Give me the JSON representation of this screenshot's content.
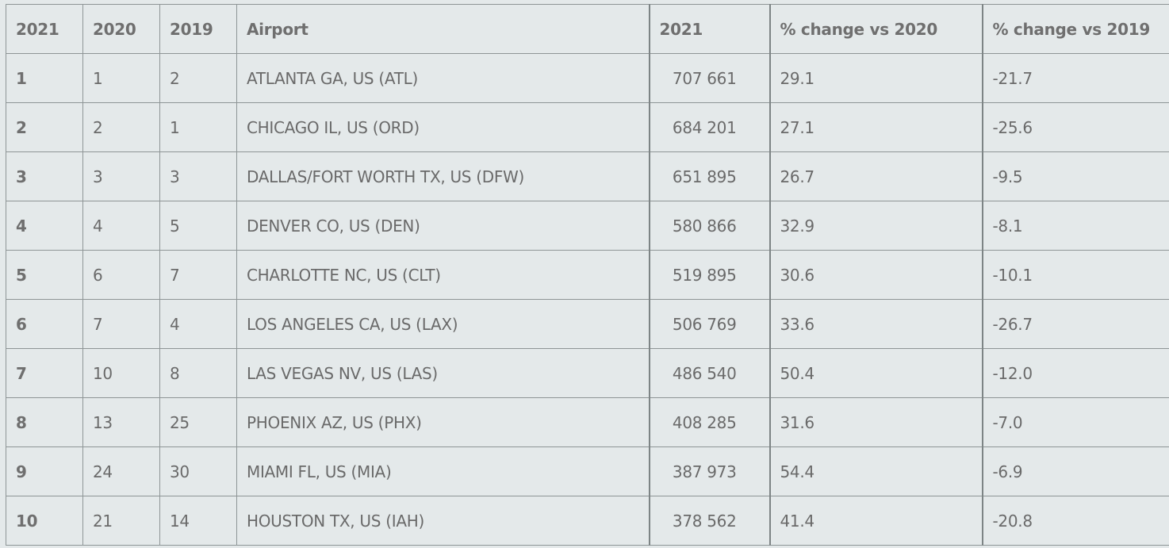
{
  "chart_data": {
    "type": "table",
    "columns": [
      "2021",
      "2020",
      "2019",
      "Airport",
      "2021",
      "% change vs 2020",
      "% change vs 2019"
    ],
    "rows": [
      {
        "rank_2021": "1",
        "rank_2020": "1",
        "rank_2019": "2",
        "airport": "ATLANTA GA, US (ATL)",
        "value_2021": "707 661",
        "change_vs_2020": "29.1",
        "change_vs_2019": "-21.7"
      },
      {
        "rank_2021": "2",
        "rank_2020": "2",
        "rank_2019": "1",
        "airport": "CHICAGO IL, US (ORD)",
        "value_2021": "684 201",
        "change_vs_2020": "27.1",
        "change_vs_2019": "-25.6"
      },
      {
        "rank_2021": "3",
        "rank_2020": "3",
        "rank_2019": "3",
        "airport": "DALLAS/FORT WORTH TX, US (DFW)",
        "value_2021": "651 895",
        "change_vs_2020": "26.7",
        "change_vs_2019": "-9.5"
      },
      {
        "rank_2021": "4",
        "rank_2020": "4",
        "rank_2019": "5",
        "airport": "DENVER CO, US (DEN)",
        "value_2021": "580 866",
        "change_vs_2020": "32.9",
        "change_vs_2019": "-8.1"
      },
      {
        "rank_2021": "5",
        "rank_2020": "6",
        "rank_2019": "7",
        "airport": "CHARLOTTE NC, US (CLT)",
        "value_2021": "519 895",
        "change_vs_2020": "30.6",
        "change_vs_2019": "-10.1"
      },
      {
        "rank_2021": "6",
        "rank_2020": "7",
        "rank_2019": "4",
        "airport": "LOS ANGELES CA, US (LAX)",
        "value_2021": "506 769",
        "change_vs_2020": "33.6",
        "change_vs_2019": "-26.7"
      },
      {
        "rank_2021": "7",
        "rank_2020": "10",
        "rank_2019": "8",
        "airport": "LAS VEGAS NV, US (LAS)",
        "value_2021": "486 540",
        "change_vs_2020": "50.4",
        "change_vs_2019": "-12.0"
      },
      {
        "rank_2021": "8",
        "rank_2020": "13",
        "rank_2019": "25",
        "airport": "PHOENIX AZ, US (PHX)",
        "value_2021": "408 285",
        "change_vs_2020": "31.6",
        "change_vs_2019": "-7.0"
      },
      {
        "rank_2021": "9",
        "rank_2020": "24",
        "rank_2019": "30",
        "airport": "MIAMI FL, US (MIA)",
        "value_2021": "387 973",
        "change_vs_2020": "54.4",
        "change_vs_2019": "-6.9"
      },
      {
        "rank_2021": "10",
        "rank_2020": "21",
        "rank_2019": "14",
        "airport": "HOUSTON TX, US (IAH)",
        "value_2021": "378 562",
        "change_vs_2020": "41.4",
        "change_vs_2019": "-20.8"
      }
    ]
  },
  "colors": {
    "background": "#e4e9ea",
    "text": "#6a6a6a",
    "grid": "#8e9596"
  }
}
